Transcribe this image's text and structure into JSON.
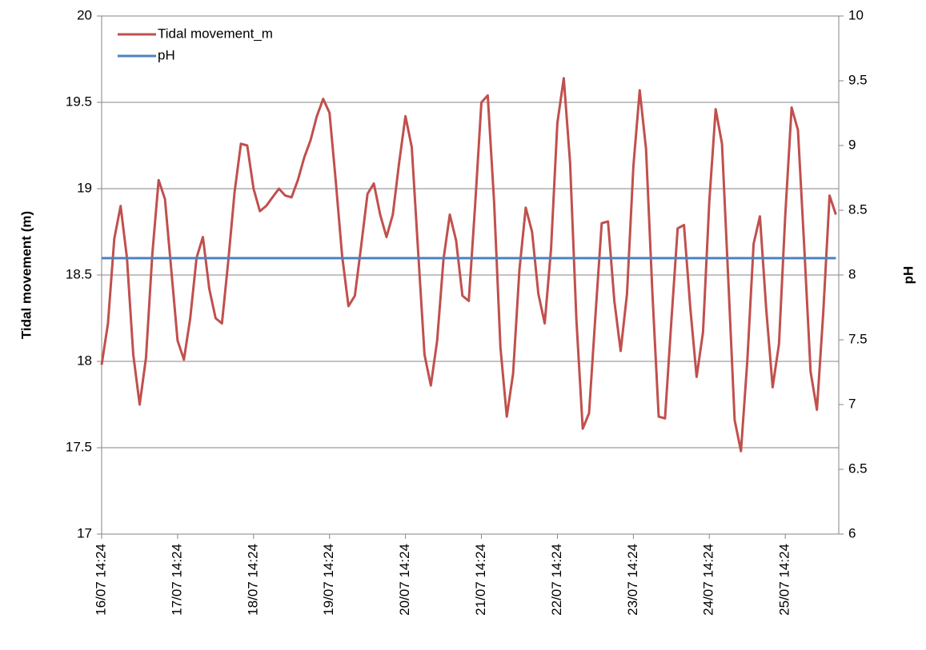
{
  "chart_data": {
    "type": "line",
    "categories": [
      "16/07 14:24",
      null,
      null,
      null,
      null,
      null,
      null,
      null,
      null,
      null,
      null,
      null,
      "17/07 14:24",
      null,
      null,
      null,
      null,
      null,
      null,
      null,
      null,
      null,
      null,
      null,
      "18/07 14:24",
      null,
      null,
      null,
      null,
      null,
      null,
      null,
      null,
      null,
      null,
      null,
      "19/07 14:24",
      null,
      null,
      null,
      null,
      null,
      null,
      null,
      null,
      null,
      null,
      null,
      "20/07 14:24",
      null,
      null,
      null,
      null,
      null,
      null,
      null,
      null,
      null,
      null,
      null,
      "21/07 14:24",
      null,
      null,
      null,
      null,
      null,
      null,
      null,
      null,
      null,
      null,
      null,
      "22/07 14:24",
      null,
      null,
      null,
      null,
      null,
      null,
      null,
      null,
      null,
      null,
      null,
      "23/07 14:24",
      null,
      null,
      null,
      null,
      null,
      null,
      null,
      null,
      null,
      null,
      null,
      "24/07 14:24",
      null,
      null,
      null,
      null,
      null,
      null,
      null,
      null,
      null,
      null,
      null,
      "25/07 14:24",
      null,
      null,
      null,
      null,
      null,
      null,
      null,
      null
    ],
    "series": [
      {
        "name": "Tidal movement_m",
        "color": "#c0504d",
        "values": [
          17.98,
          18.22,
          18.71,
          18.9,
          18.6,
          18.04,
          17.75,
          18.02,
          18.62,
          19.05,
          18.94,
          18.53,
          18.12,
          18.01,
          18.25,
          18.6,
          18.72,
          18.42,
          18.25,
          18.22,
          18.58,
          18.98,
          19.26,
          19.25,
          19.0,
          18.87,
          18.9,
          18.95,
          19.0,
          18.96,
          18.95,
          19.05,
          19.18,
          19.28,
          19.42,
          19.52,
          19.44,
          19.04,
          18.61,
          18.32,
          18.38,
          18.67,
          18.97,
          19.03,
          18.85,
          18.72,
          18.85,
          19.15,
          19.42,
          19.24,
          18.64,
          18.04,
          17.86,
          18.12,
          18.59,
          18.85,
          18.7,
          18.38,
          18.35,
          18.9,
          19.5,
          19.54,
          18.92,
          18.08,
          17.68,
          17.93,
          18.53,
          18.89,
          18.75,
          18.39,
          18.22,
          18.65,
          19.38,
          19.64,
          19.15,
          18.24,
          17.61,
          17.7,
          18.26,
          18.8,
          18.81,
          18.35,
          18.06,
          18.39,
          19.13,
          19.57,
          19.23,
          18.4,
          17.68,
          17.67,
          18.23,
          18.77,
          18.79,
          18.31,
          17.91,
          18.17,
          18.93,
          19.46,
          19.26,
          18.47,
          17.66,
          17.48,
          18.0,
          18.68,
          18.84,
          18.3,
          17.85,
          18.1,
          18.85,
          19.47,
          19.34,
          18.66,
          17.94,
          17.72,
          18.28,
          18.96,
          18.85
        ]
      },
      {
        "name": "pH",
        "color": "#4f81bd",
        "axis": "y2",
        "values": [
          8.13,
          8.13,
          8.13,
          8.13,
          8.13,
          8.13,
          8.13,
          8.13,
          8.13,
          8.13,
          8.13,
          8.13,
          8.13,
          8.13,
          8.13,
          8.13,
          8.13,
          8.13,
          8.13,
          8.13,
          8.13,
          8.13,
          8.13,
          8.13,
          8.13,
          8.13,
          8.13,
          8.13,
          8.13,
          8.13,
          8.13,
          8.13,
          8.13,
          8.13,
          8.13,
          8.13,
          8.13,
          8.13,
          8.13,
          8.13,
          8.13,
          8.13,
          8.13,
          8.13,
          8.13,
          8.13,
          8.13,
          8.13,
          8.13,
          8.13,
          8.13,
          8.13,
          8.13,
          8.13,
          8.13,
          8.13,
          8.13,
          8.13,
          8.13,
          8.13,
          8.13,
          8.13,
          8.13,
          8.13,
          8.13,
          8.13,
          8.13,
          8.13,
          8.13,
          8.13,
          8.13,
          8.13,
          8.13,
          8.13,
          8.13,
          8.13,
          8.13,
          8.13,
          8.13,
          8.13,
          8.13,
          8.13,
          8.13,
          8.13,
          8.13,
          8.13,
          8.13,
          8.13,
          8.13,
          8.13,
          8.13,
          8.13,
          8.13,
          8.13,
          8.13,
          8.13,
          8.13,
          8.13,
          8.13,
          8.13,
          8.13,
          8.13,
          8.13,
          8.13,
          8.13,
          8.13,
          8.13,
          8.13,
          8.13,
          8.13,
          8.13,
          8.13,
          8.13,
          8.13,
          8.13,
          8.13,
          8.13
        ]
      }
    ],
    "ylabel": "Tidal movement (m)",
    "y2label": "pH",
    "ylim": [
      17,
      20
    ],
    "yticks": [
      17,
      17.5,
      18,
      18.5,
      19,
      19.5,
      20
    ],
    "y2lim": [
      6,
      10
    ],
    "y2ticks": [
      6,
      6.5,
      7,
      7.5,
      8,
      8.5,
      9,
      9.5,
      10
    ],
    "grid": true,
    "legend": "upper left"
  }
}
